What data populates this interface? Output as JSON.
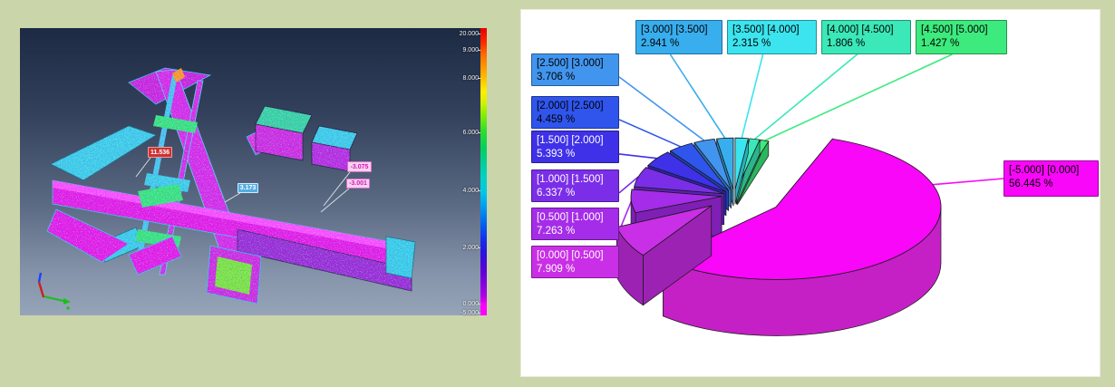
{
  "page": {
    "background": "#cbd5aa"
  },
  "viewport3d": {
    "description": "3D colour-coded deviation view of scanned steel assembly",
    "annotations": [
      {
        "label": "11.536",
        "fill": "#cc3333",
        "text": "#ffffff",
        "border": "#ef9a9a"
      },
      {
        "label": "3.173",
        "fill": "#54aee0",
        "text": "#ffffff",
        "border": "#d3ecfa"
      },
      {
        "label": "-3.075",
        "fill": "#f7d2ee",
        "text": "#d517b4",
        "border": "#e06ad0"
      },
      {
        "label": "-3.001",
        "fill": "#f7d2ee",
        "text": "#d517b4",
        "border": "#e06ad0"
      }
    ],
    "colorbar_ticks": [
      "20.000",
      "9.000",
      "8.000",
      "6.000",
      "4.000",
      "2.000",
      "0.000",
      "-5.000"
    ],
    "axis_triad": {
      "x_color": "#cc2020",
      "y_color": "#18c018",
      "z_color": "#2040ff"
    }
  },
  "chart_data": {
    "type": "pie",
    "style": "3d-exploded",
    "unit": "%",
    "legend_position": "callout-boxes",
    "slices": [
      {
        "range_label": "[-5.000] [0.000]",
        "pct_label": "56.445 %",
        "value": 56.445,
        "fill": "#f807f8",
        "wall": "#c520c5",
        "text": "#000000"
      },
      {
        "range_label": "[0.000] [0.500]",
        "pct_label": "7.909 %",
        "value": 7.909,
        "fill": "#c92fe6",
        "wall": "#9c22b4",
        "text": "#ffffff"
      },
      {
        "range_label": "[0.500] [1.000]",
        "pct_label": "7.263 %",
        "value": 7.263,
        "fill": "#a52ce8",
        "wall": "#7f1fb6",
        "text": "#ffffff"
      },
      {
        "range_label": "[1.000] [1.500]",
        "pct_label": "6.337 %",
        "value": 6.337,
        "fill": "#7b2ee8",
        "wall": "#5c20b6",
        "text": "#ffffff"
      },
      {
        "range_label": "[1.500] [2.000]",
        "pct_label": "5.393 %",
        "value": 5.393,
        "fill": "#3f31e8",
        "wall": "#2c22b6",
        "text": "#ffffff"
      },
      {
        "range_label": "[2.000] [2.500]",
        "pct_label": "4.459 %",
        "value": 4.459,
        "fill": "#2f55ec",
        "wall": "#2140ba",
        "text": "#000000"
      },
      {
        "range_label": "[2.500] [3.000]",
        "pct_label": "3.706 %",
        "value": 3.706,
        "fill": "#4295ee",
        "wall": "#2f70bc",
        "text": "#000000"
      },
      {
        "range_label": "[3.000] [3.500]",
        "pct_label": "2.941 %",
        "value": 2.941,
        "fill": "#38aeee",
        "wall": "#2884bc",
        "text": "#000000"
      },
      {
        "range_label": "[3.500] [4.000]",
        "pct_label": "2.315 %",
        "value": 2.315,
        "fill": "#3be4ee",
        "wall": "#2baebc",
        "text": "#000000"
      },
      {
        "range_label": "[4.000] [4.500]",
        "pct_label": "1.806 %",
        "value": 1.806,
        "fill": "#3be8b8",
        "wall": "#2bb48d",
        "text": "#000000"
      },
      {
        "range_label": "[4.500] [5.000]",
        "pct_label": "1.427 %",
        "value": 1.427,
        "fill": "#3dea7e",
        "wall": "#2cb55f",
        "text": "#000000"
      }
    ]
  }
}
